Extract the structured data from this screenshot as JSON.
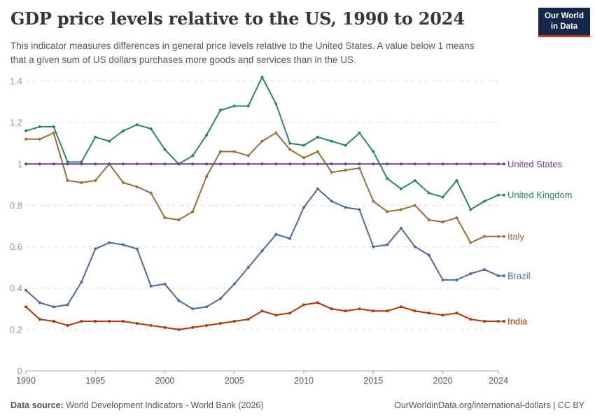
{
  "header": {
    "title": "GDP price levels relative to the US, 1990 to 2024",
    "subtitle_line1": "This indicator measures differences in general price levels relative to the United States. A value below 1 means",
    "subtitle_line2": "that a given sum of US dollars purchases more goods and services than in the US.",
    "logo": {
      "line1": "Our World",
      "line2": "in Data",
      "bg_color": "#14284B",
      "bar_color": "#D22D23"
    }
  },
  "chart_data": {
    "type": "line",
    "x_start": 1990,
    "x_end": 2024,
    "x_ticks": [
      1990,
      1995,
      2000,
      2005,
      2010,
      2015,
      2020,
      2024
    ],
    "y_ticks": [
      0,
      0.2,
      0.4,
      0.6,
      0.8,
      1,
      1.2,
      1.4
    ],
    "ylim": [
      0,
      1.4
    ],
    "grid": "horizontal-dashed",
    "legend_position": "right-edge-labels",
    "series": [
      {
        "name": "United States",
        "color": "#6D3E91",
        "values": [
          1,
          1,
          1,
          1,
          1,
          1,
          1,
          1,
          1,
          1,
          1,
          1,
          1,
          1,
          1,
          1,
          1,
          1,
          1,
          1,
          1,
          1,
          1,
          1,
          1,
          1,
          1,
          1,
          1,
          1,
          1,
          1,
          1,
          1,
          1
        ]
      },
      {
        "name": "United Kingdom",
        "color": "#2C8465",
        "values": [
          1.16,
          1.18,
          1.18,
          1.01,
          1.01,
          1.13,
          1.11,
          1.16,
          1.19,
          1.17,
          1.07,
          1.0,
          1.04,
          1.14,
          1.26,
          1.28,
          1.28,
          1.42,
          1.29,
          1.1,
          1.09,
          1.13,
          1.11,
          1.09,
          1.15,
          1.06,
          0.93,
          0.88,
          0.92,
          0.86,
          0.84,
          0.92,
          0.78,
          0.82,
          0.85
        ]
      },
      {
        "name": "Italy",
        "color": "#996D39",
        "values": [
          1.12,
          1.12,
          1.15,
          0.92,
          0.91,
          0.92,
          1.0,
          0.91,
          0.89,
          0.86,
          0.74,
          0.73,
          0.77,
          0.94,
          1.06,
          1.06,
          1.04,
          1.11,
          1.15,
          1.07,
          1.03,
          1.06,
          0.96,
          0.97,
          0.98,
          0.82,
          0.77,
          0.78,
          0.8,
          0.73,
          0.72,
          0.74,
          0.62,
          0.65,
          0.65
        ]
      },
      {
        "name": "Brazil",
        "color": "#4C6A9C",
        "values": [
          0.39,
          0.33,
          0.31,
          0.32,
          0.43,
          0.59,
          0.62,
          0.61,
          0.59,
          0.41,
          0.42,
          0.34,
          0.3,
          0.31,
          0.35,
          0.42,
          0.5,
          0.58,
          0.66,
          0.64,
          0.79,
          0.88,
          0.82,
          0.79,
          0.78,
          0.6,
          0.61,
          0.69,
          0.6,
          0.56,
          0.44,
          0.44,
          0.47,
          0.49,
          0.46
        ]
      },
      {
        "name": "India",
        "color": "#B13507",
        "values": [
          0.31,
          0.25,
          0.24,
          0.22,
          0.24,
          0.24,
          0.24,
          0.24,
          0.23,
          0.22,
          0.21,
          0.2,
          0.21,
          0.22,
          0.23,
          0.24,
          0.25,
          0.29,
          0.27,
          0.28,
          0.32,
          0.33,
          0.3,
          0.29,
          0.3,
          0.29,
          0.29,
          0.31,
          0.29,
          0.28,
          0.27,
          0.28,
          0.25,
          0.24,
          0.24
        ]
      }
    ]
  },
  "footer": {
    "source_label": "Data source:",
    "source_text": " World Development Indicators - World Bank (2026)",
    "credit": "OurWorldinData.org/international-dollars | CC BY"
  }
}
